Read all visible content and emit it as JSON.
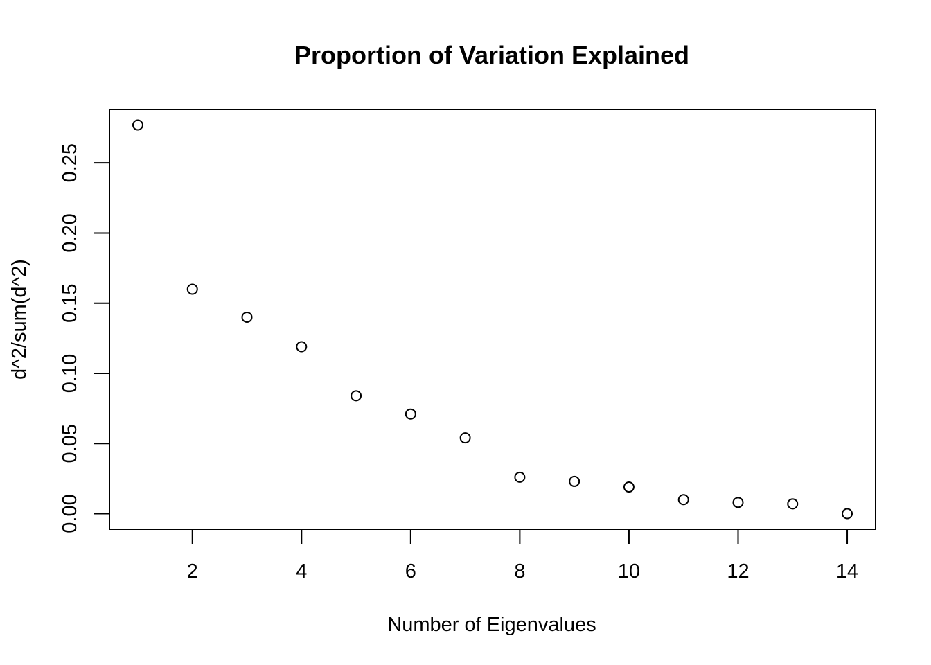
{
  "chart_data": {
    "type": "scatter",
    "title": "Proportion of Variation Explained",
    "xlabel": "Number of Eigenvalues",
    "ylabel": "d^2/sum(d^2)",
    "xlim": [
      0.48,
      14.52
    ],
    "ylim": [
      -0.0111,
      0.2881
    ],
    "x_ticks": [
      2,
      4,
      6,
      8,
      10,
      12,
      14
    ],
    "x_tick_labels": [
      "2",
      "4",
      "6",
      "8",
      "10",
      "12",
      "14"
    ],
    "y_ticks": [
      0.0,
      0.05,
      0.1,
      0.15,
      0.2,
      0.25
    ],
    "y_tick_labels": [
      "0.00",
      "0.05",
      "0.10",
      "0.15",
      "0.20",
      "0.25"
    ],
    "grid": false,
    "marker": "open-circle",
    "x": [
      1,
      2,
      3,
      4,
      5,
      6,
      7,
      8,
      9,
      10,
      11,
      12,
      13,
      14
    ],
    "y": [
      0.277,
      0.16,
      0.14,
      0.119,
      0.084,
      0.071,
      0.054,
      0.026,
      0.023,
      0.019,
      0.01,
      0.008,
      0.007,
      0.0
    ]
  }
}
